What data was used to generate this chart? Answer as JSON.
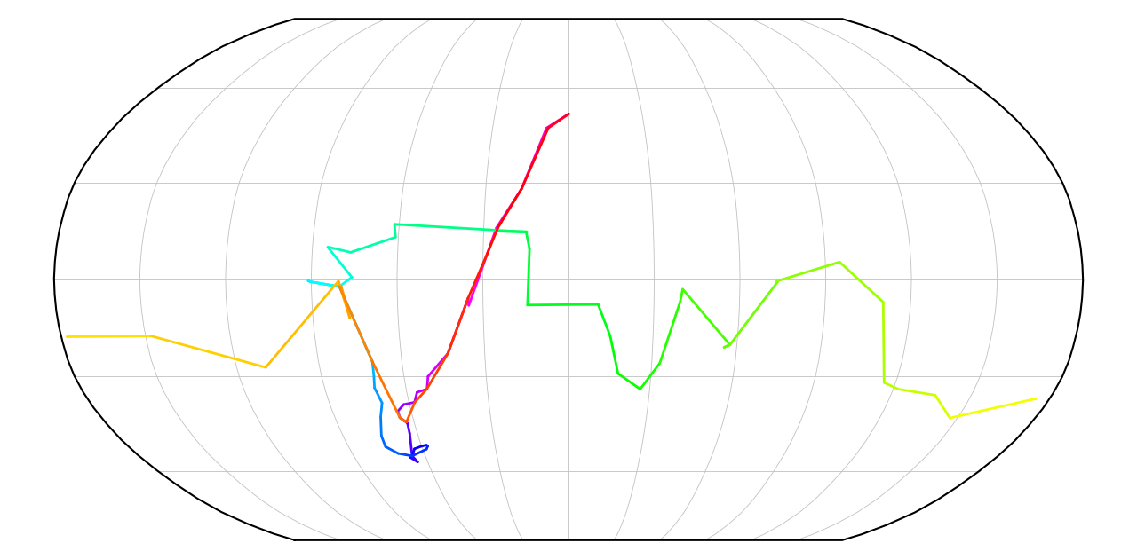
{
  "ocean_color": "#ffffff",
  "land_color": "#000000",
  "grid_color": "#c0c0c0",
  "outline_color": "#000000",
  "linewidth": 2.0,
  "route_lon": [
    0.12,
    -8.7,
    -17.0,
    -25.5,
    -28.5,
    -35.0,
    -35.2,
    -43.2,
    -51.2,
    -52.3,
    -56.2,
    -57.9,
    -62.2,
    -65.1,
    -65.0,
    -62.7,
    -63.1,
    -65.5,
    -64.3,
    -66.5,
    -65.3,
    -63.4,
    -59.5,
    -57.9,
    -57.5,
    -58.5,
    -65.5,
    -68.1,
    -70.9,
    -74.9,
    -74.7,
    -72.3,
    -70.2,
    -71.6,
    -70.9,
    -70.6,
    -80.2,
    -90.3,
    -91.1,
    -90.3,
    -80.2,
    -77.2,
    -75.8,
    -84.6,
    -83.7,
    -76.5,
    -61.0,
    -61.7,
    -14.9,
    -17.0,
    -25.7,
    -22.9,
    -15.0,
    -13.7,
    -14.4,
    10.4,
    14.8,
    18.0,
    26.5,
    32.9,
    39.2,
    40.0,
    57.5,
    55.5,
    57.5,
    73.2,
    72.9,
    95.0,
    110.4,
    115.8,
    121.9,
    136.6,
    147.3,
    147.1,
    174.8,
    175.0,
    -178.0,
    -148.0,
    -109.5,
    -80.5,
    -77.0,
    -79.5,
    -80.2,
    -70.6,
    -65.0,
    -63.0,
    -57.8,
    -52.4,
    -43.2,
    -35.2,
    -28.5,
    -25.0,
    -17.0,
    -8.0,
    0.12
  ],
  "route_lat": [
    51.5,
    47.0,
    28.1,
    16.0,
    8.0,
    -8.0,
    -5.8,
    -22.9,
    -30.0,
    -33.9,
    -34.9,
    -38.0,
    -38.7,
    -40.8,
    -42.8,
    -44.5,
    -47.8,
    -55.0,
    -57.0,
    -55.5,
    -54.8,
    -52.7,
    -51.7,
    -51.5,
    -51.8,
    -52.8,
    -55.0,
    -54.6,
    -54.2,
    -52.0,
    -48.5,
    -42.5,
    -38.2,
    -33.5,
    -29.9,
    -25.4,
    -2.2,
    -0.7,
    -0.4,
    -0.7,
    -2.2,
    -0.2,
    0.7,
    10.0,
    9.9,
    8.4,
    13.1,
    17.1,
    14.7,
    14.7,
    15.0,
    14.9,
    14.8,
    9.5,
    -7.9,
    -7.7,
    -17.5,
    -29.1,
    -33.9,
    -25.9,
    -6.8,
    -3.0,
    -20.2,
    -21.0,
    -20.2,
    -0.7,
    -0.5,
    5.4,
    -7.0,
    -31.9,
    -33.9,
    -35.8,
    -43.0,
    -42.9,
    -36.9,
    -37.0,
    -17.7,
    -17.5,
    -27.2,
    -0.5,
    -12.0,
    -2.2,
    -2.2,
    -25.4,
    -42.8,
    -44.2,
    -38.0,
    -33.9,
    -22.9,
    -5.8,
    8.0,
    16.0,
    28.1,
    47.0,
    51.5
  ]
}
